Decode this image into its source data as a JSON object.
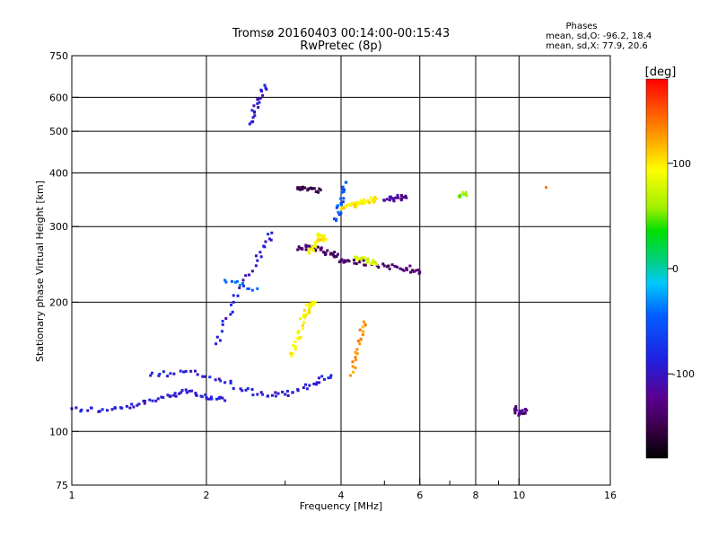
{
  "chart_data": {
    "type": "scatter",
    "title": "Tromsø 20160403 00:14:00-00:15:43",
    "subtitle": "RwPretec (8p)",
    "xlabel": "Frequency [MHz]",
    "ylabel": "Stationary phase Virtual Height [km]",
    "x_scale": "log",
    "y_scale": "log",
    "xlim": [
      1,
      16
    ],
    "ylim": [
      75,
      750
    ],
    "x_ticks": [
      1,
      2,
      4,
      6,
      8,
      10,
      16
    ],
    "x_tick_labels": [
      "1",
      "2",
      "4",
      "6",
      "8",
      "10",
      "16"
    ],
    "x_minor_ticks": [
      3,
      5,
      7,
      9
    ],
    "y_ticks": [
      75,
      100,
      200,
      300,
      400,
      500,
      600,
      750
    ],
    "y_tick_labels": [
      "75",
      "100",
      "200",
      "300",
      "400",
      "500",
      "600",
      "750"
    ],
    "grid": true,
    "stats": {
      "heading": "Phases",
      "line1": "mean, sd,O: -96.2, 18.4",
      "line2": "mean, sd,X:  77.9, 20.6"
    },
    "colorbar": {
      "label": "[deg]",
      "range": [
        -180,
        180
      ],
      "ticks": [
        100,
        0,
        -100
      ],
      "tick_labels": [
        "100",
        "0",
        "-100"
      ]
    },
    "traces": [
      {
        "x": [
          1.0,
          1.2,
          1.4,
          1.6,
          1.8,
          2.0,
          2.2
        ],
        "y": [
          113,
          112,
          115,
          120,
          125,
          120,
          118
        ],
        "phase": -100
      },
      {
        "x": [
          1.5,
          1.8,
          2.2,
          2.6,
          3.0,
          3.4,
          3.8
        ],
        "y": [
          135,
          138,
          130,
          122,
          122,
          128,
          135
        ],
        "phase": -100
      },
      {
        "x": [
          2.1,
          2.3,
          2.6,
          2.8
        ],
        "y": [
          160,
          200,
          250,
          290
        ],
        "phase": -100
      },
      {
        "x": [
          3.2,
          3.4,
          3.6,
          3.8,
          4.0,
          4.4,
          5.0,
          5.6,
          6.0
        ],
        "y": [
          265,
          270,
          265,
          260,
          250,
          248,
          243,
          240,
          235
        ],
        "phase": -140
      },
      {
        "x": [
          3.1,
          3.2,
          3.3,
          3.4,
          3.5
        ],
        "y": [
          150,
          165,
          185,
          195,
          200
        ],
        "phase": 95
      },
      {
        "x": [
          3.4,
          3.5,
          3.6,
          3.7
        ],
        "y": [
          260,
          275,
          285,
          280
        ],
        "phase": 100
      },
      {
        "x": [
          4.0,
          4.2,
          4.4,
          4.6,
          4.8
        ],
        "y": [
          330,
          336,
          340,
          345,
          348
        ],
        "phase": 100
      },
      {
        "x": [
          4.3,
          4.6,
          4.8
        ],
        "y": [
          255,
          250,
          245
        ],
        "phase": 80
      },
      {
        "x": [
          4.2,
          4.4,
          4.5
        ],
        "y": [
          135,
          160,
          180
        ],
        "phase": 130
      },
      {
        "x": [
          2.5,
          2.6,
          2.7
        ],
        "y": [
          520,
          580,
          640
        ],
        "phase": -100
      },
      {
        "x": [
          3.2,
          3.4,
          3.6
        ],
        "y": [
          370,
          368,
          365
        ],
        "phase": -150
      },
      {
        "x": [
          3.9,
          4.0,
          4.1
        ],
        "y": [
          310,
          340,
          380
        ],
        "phase": -70
      },
      {
        "x": [
          5.0,
          5.3,
          5.6
        ],
        "y": [
          345,
          350,
          350
        ],
        "phase": -120
      },
      {
        "x": [
          7.4,
          7.6
        ],
        "y": [
          355,
          356
        ],
        "phase": 60
      },
      {
        "x": [
          9.8,
          10.0,
          10.4
        ],
        "y": [
          113,
          110,
          112
        ],
        "phase": -130
      },
      {
        "x": [
          11.5
        ],
        "y": [
          370
        ],
        "phase": 140
      },
      {
        "x": [
          2.2,
          2.6
        ],
        "y": [
          225,
          215
        ],
        "phase": -60
      }
    ]
  }
}
